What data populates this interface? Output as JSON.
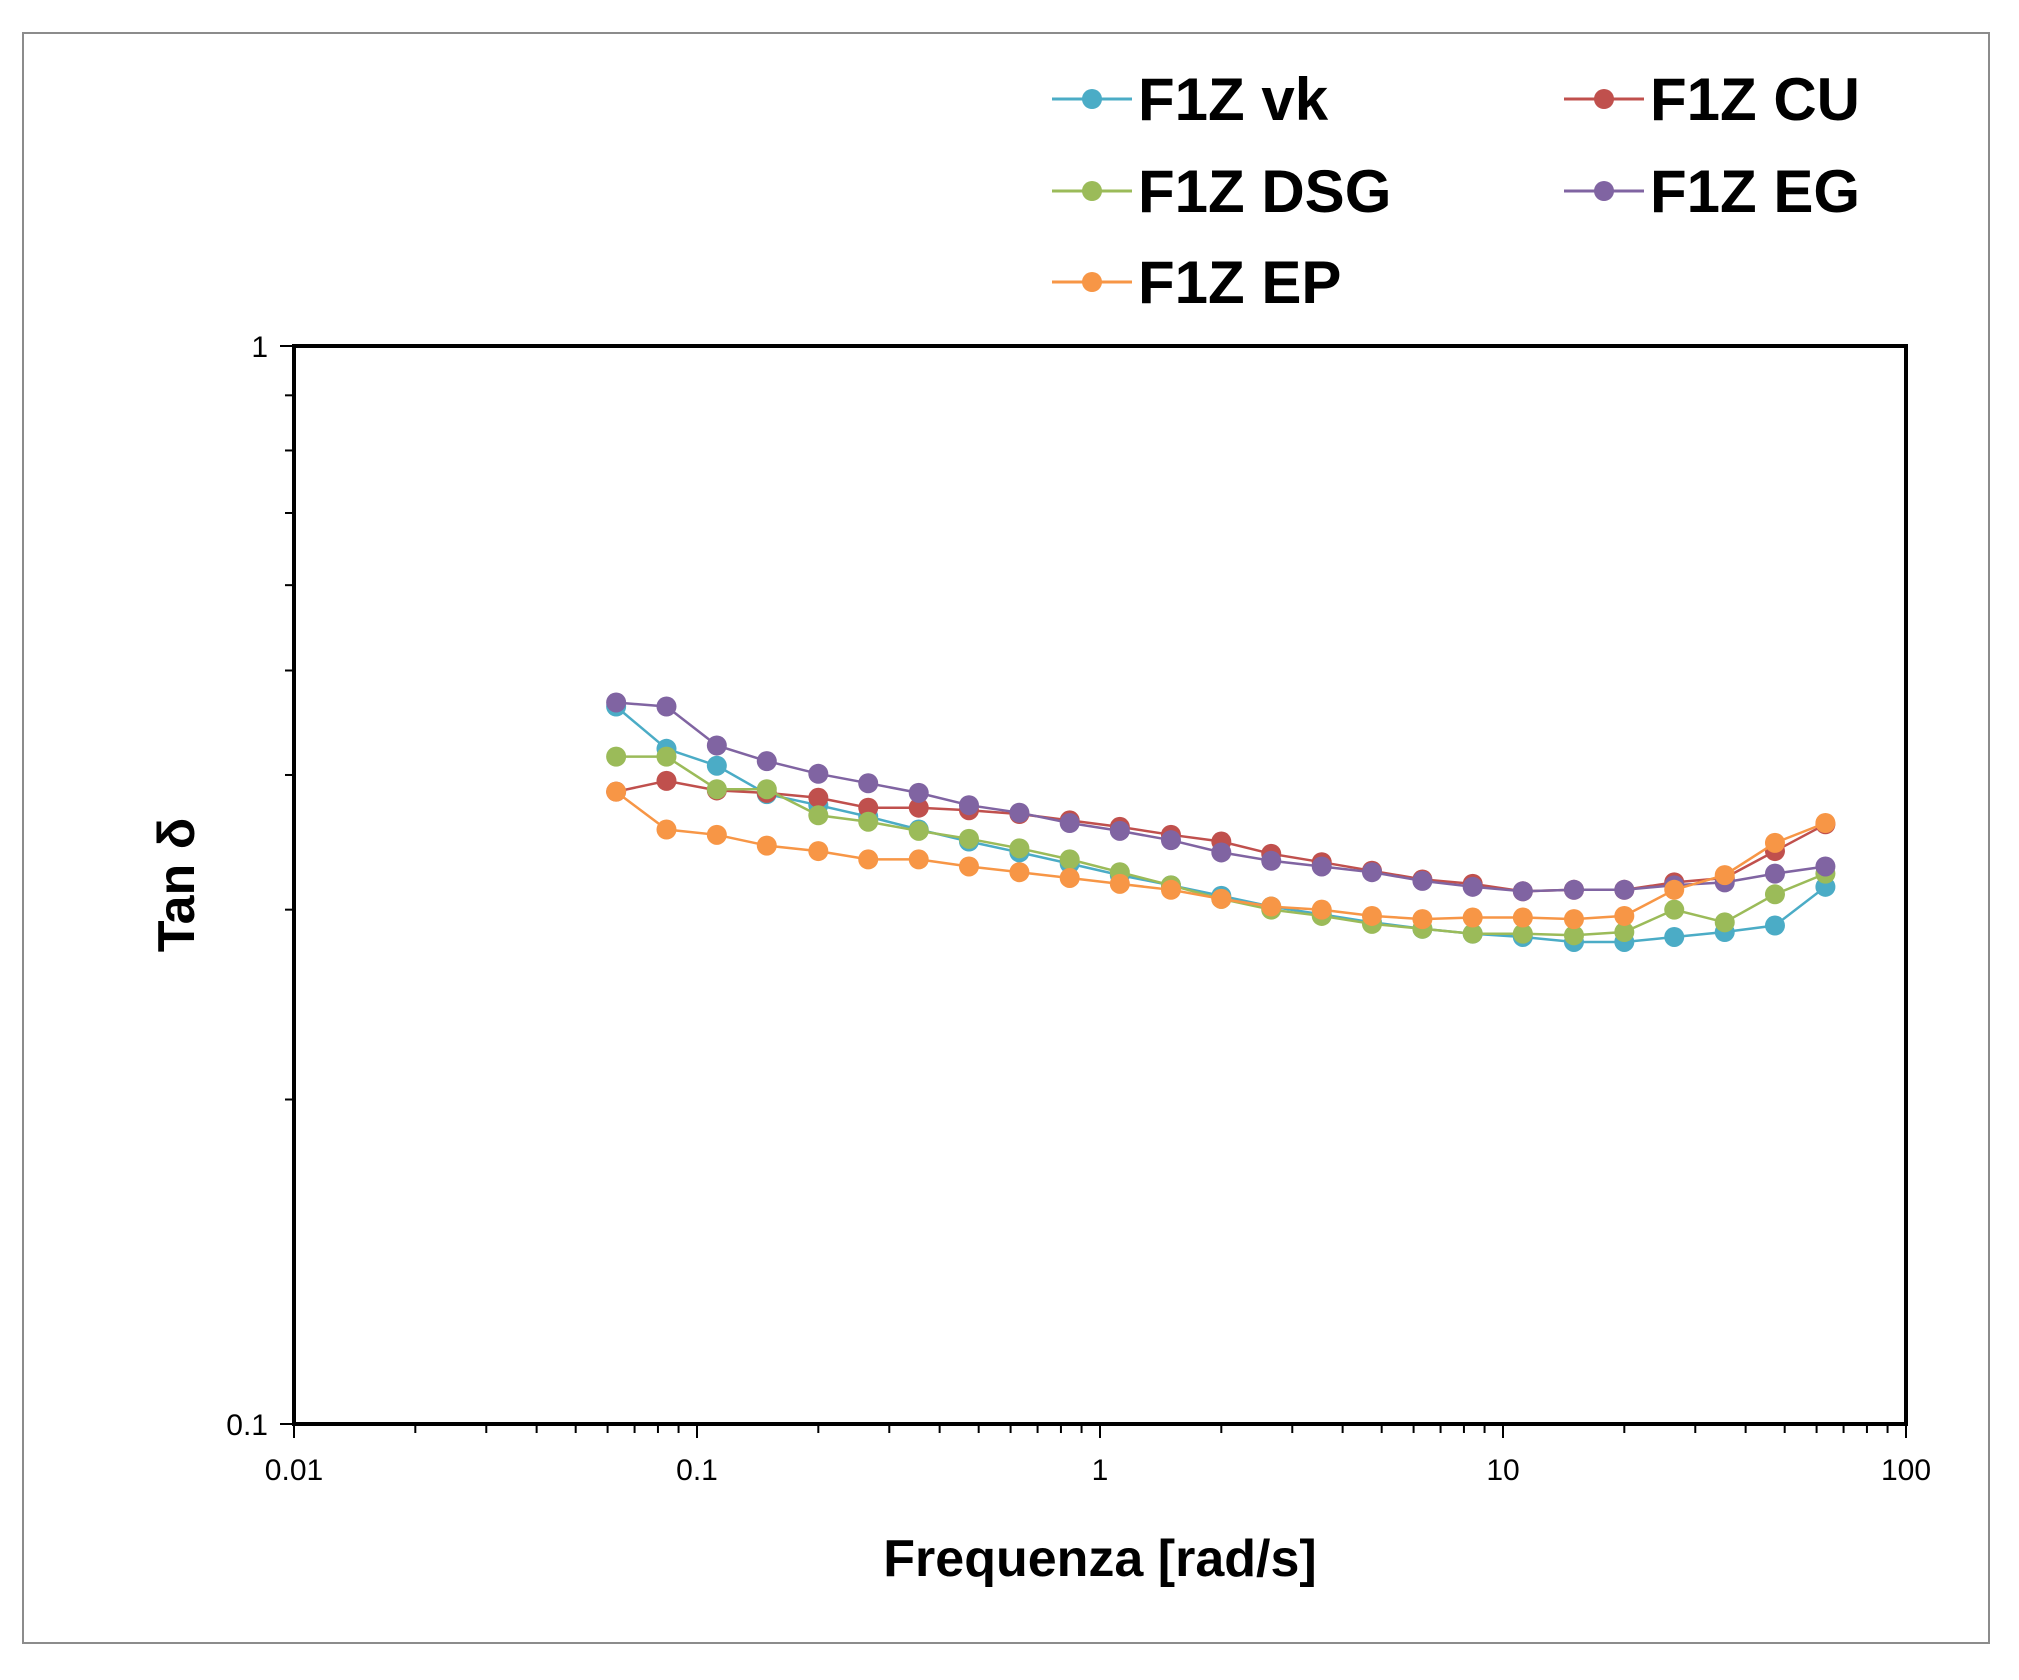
{
  "chart_data": {
    "type": "line",
    "xscale": "log",
    "yscale": "log",
    "xlabel": "Frequenza [rad/s]",
    "ylabel": "Tan δ",
    "xlim": [
      0.01,
      100
    ],
    "ylim": [
      0.1,
      1
    ],
    "x_ticks": [
      0.01,
      0.1,
      1,
      10,
      100
    ],
    "x_tick_labels": [
      "0.01",
      "0.1",
      "1",
      "10",
      "100"
    ],
    "y_ticks": [
      0.1,
      1
    ],
    "y_tick_labels": [
      "0.1",
      "1"
    ],
    "legend_position": "top",
    "x": [
      0.063,
      0.084,
      0.112,
      0.149,
      0.2,
      0.266,
      0.355,
      0.473,
      0.631,
      0.841,
      1.12,
      1.5,
      2.0,
      2.66,
      3.55,
      4.73,
      6.31,
      8.41,
      11.2,
      15.0,
      20.0,
      26.6,
      35.5,
      47.3,
      63.1
    ],
    "series": [
      {
        "name": "F1Z vk",
        "color": "#4bacc6",
        "values": [
          0.463,
          0.423,
          0.408,
          0.384,
          0.375,
          0.366,
          0.356,
          0.347,
          0.339,
          0.331,
          0.323,
          0.316,
          0.309,
          0.302,
          0.297,
          0.292,
          0.288,
          0.285,
          0.283,
          0.28,
          0.28,
          0.283,
          0.286,
          0.29,
          0.315
        ]
      },
      {
        "name": "F1Z CU",
        "color": "#c0504d",
        "values": [
          0.386,
          0.395,
          0.387,
          0.385,
          0.381,
          0.373,
          0.373,
          0.371,
          0.368,
          0.363,
          0.358,
          0.352,
          0.347,
          0.338,
          0.332,
          0.326,
          0.32,
          0.317,
          0.312,
          0.313,
          0.313,
          0.318,
          0.321,
          0.34,
          0.36
        ]
      },
      {
        "name": "F1Z DSG",
        "color": "#9bbb59",
        "values": [
          0.416,
          0.416,
          0.388,
          0.388,
          0.367,
          0.362,
          0.355,
          0.349,
          0.342,
          0.334,
          0.325,
          0.316,
          0.307,
          0.3,
          0.296,
          0.291,
          0.288,
          0.285,
          0.285,
          0.284,
          0.286,
          0.3,
          0.292,
          0.31,
          0.324
        ]
      },
      {
        "name": "F1Z EG",
        "color": "#8064a2",
        "values": [
          0.467,
          0.463,
          0.426,
          0.412,
          0.401,
          0.393,
          0.385,
          0.375,
          0.369,
          0.361,
          0.355,
          0.348,
          0.339,
          0.333,
          0.329,
          0.325,
          0.319,
          0.315,
          0.312,
          0.313,
          0.313,
          0.316,
          0.318,
          0.324,
          0.329
        ]
      },
      {
        "name": "F1Z EP",
        "color": "#f79646",
        "values": [
          0.386,
          0.356,
          0.352,
          0.344,
          0.34,
          0.334,
          0.334,
          0.329,
          0.325,
          0.321,
          0.317,
          0.313,
          0.307,
          0.302,
          0.3,
          0.296,
          0.294,
          0.295,
          0.295,
          0.294,
          0.296,
          0.313,
          0.323,
          0.346,
          0.361
        ]
      }
    ]
  }
}
